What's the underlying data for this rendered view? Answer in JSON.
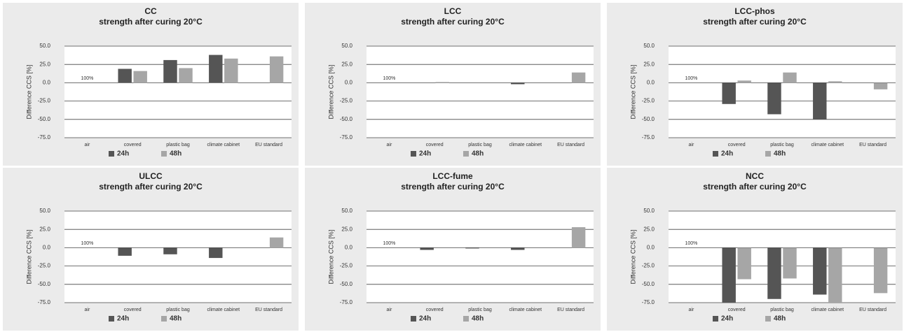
{
  "chart_data": [
    {
      "type": "bar",
      "title": "CC",
      "subtitle": "strength after curing 20°C",
      "y_label": "Difference CCS [%]",
      "annotation": "100%",
      "categories": [
        "air",
        "covered",
        "plastic bag",
        "climate cabinet",
        "EU standard"
      ],
      "series": [
        {
          "name": "24h",
          "color": "#555555",
          "values": [
            null,
            19,
            31,
            38,
            null
          ]
        },
        {
          "name": "48h",
          "color": "#a6a6a6",
          "values": [
            null,
            16,
            20,
            33,
            36
          ]
        }
      ],
      "ylim": [
        -75,
        50
      ],
      "yticks": [
        {
          "value": -75,
          "label": "-75.0"
        },
        {
          "value": -50,
          "label": "-50.0"
        },
        {
          "value": -25,
          "label": "-25.0"
        },
        {
          "value": 0,
          "label": "0.0"
        },
        {
          "value": 25,
          "label": "25.0"
        },
        {
          "value": 50,
          "label": "50.0"
        }
      ],
      "grid": true,
      "legend": "bottom"
    },
    {
      "type": "bar",
      "title": "LCC",
      "subtitle": "strength after curing 20°C",
      "y_label": "Difference CCS [%]",
      "annotation": "100%",
      "categories": [
        "air",
        "covered",
        "plastic bag",
        "climate cabinet",
        "EU standard"
      ],
      "series": [
        {
          "name": "24h",
          "color": "#555555",
          "values": [
            null,
            0,
            0,
            -2,
            null
          ]
        },
        {
          "name": "48h",
          "color": "#a6a6a6",
          "values": [
            null,
            1,
            0,
            0,
            14
          ]
        }
      ],
      "ylim": [
        -75,
        50
      ],
      "yticks": [
        {
          "value": -75,
          "label": "-75.0"
        },
        {
          "value": -50,
          "label": "-50.0"
        },
        {
          "value": -25,
          "label": "-25.0"
        },
        {
          "value": 0,
          "label": "0.0"
        },
        {
          "value": 25,
          "label": "25.0"
        },
        {
          "value": 50,
          "label": "50.0"
        }
      ],
      "grid": true,
      "legend": "bottom"
    },
    {
      "type": "bar",
      "title": "LCC-phos",
      "subtitle": "strength after curing 20°C",
      "y_label": "Difference CCS [%]",
      "annotation": "100%",
      "categories": [
        "air",
        "covered",
        "plastic bag",
        "climate cabinet",
        "EU standard"
      ],
      "series": [
        {
          "name": "24h",
          "color": "#555555",
          "values": [
            null,
            -29,
            -43,
            -50,
            null
          ]
        },
        {
          "name": "48h",
          "color": "#a6a6a6",
          "values": [
            null,
            3,
            14,
            2,
            -9
          ]
        }
      ],
      "ylim": [
        -75,
        50
      ],
      "yticks": [
        {
          "value": -75,
          "label": "-75.0"
        },
        {
          "value": -50,
          "label": "-50.0"
        },
        {
          "value": -25,
          "label": "-25.0"
        },
        {
          "value": 0,
          "label": "0.0"
        },
        {
          "value": 25,
          "label": "25.0"
        },
        {
          "value": 50,
          "label": "50.0"
        }
      ],
      "grid": true,
      "legend": "bottom"
    },
    {
      "type": "bar",
      "title": "ULCC",
      "subtitle": "strength after curing 20°C",
      "y_label": "Difference CCS [%]",
      "annotation": "100%",
      "categories": [
        "air",
        "covered",
        "plastic bag",
        "climate cabinet",
        "EU standard"
      ],
      "series": [
        {
          "name": "24h",
          "color": "#555555",
          "values": [
            null,
            -11,
            -9,
            -14,
            null
          ]
        },
        {
          "name": "48h",
          "color": "#a6a6a6",
          "values": [
            null,
            0,
            0,
            0,
            14
          ]
        }
      ],
      "ylim": [
        -75,
        50
      ],
      "yticks": [
        {
          "value": -75,
          "label": "-75.0"
        },
        {
          "value": -50,
          "label": "-50.0"
        },
        {
          "value": -25,
          "label": "-25.0"
        },
        {
          "value": 0,
          "label": "0.0"
        },
        {
          "value": 25,
          "label": "25.0"
        },
        {
          "value": 50,
          "label": "50.0"
        }
      ],
      "grid": true,
      "legend": "bottom"
    },
    {
      "type": "bar",
      "title": "LCC-fume",
      "subtitle": "strength after curing 20°C",
      "y_label": "Difference CCS [%]",
      "annotation": "100%",
      "categories": [
        "air",
        "covered",
        "plastic bag",
        "climate cabinet",
        "EU standard"
      ],
      "series": [
        {
          "name": "24h",
          "color": "#555555",
          "values": [
            null,
            -3,
            -1,
            -3,
            null
          ]
        },
        {
          "name": "48h",
          "color": "#a6a6a6",
          "values": [
            null,
            0,
            0,
            0,
            28
          ]
        }
      ],
      "ylim": [
        -75,
        50
      ],
      "yticks": [
        {
          "value": -75,
          "label": "-75.0"
        },
        {
          "value": -50,
          "label": "-50.0"
        },
        {
          "value": -25,
          "label": "-25.0"
        },
        {
          "value": 0,
          "label": "0.0"
        },
        {
          "value": 25,
          "label": "25.0"
        },
        {
          "value": 50,
          "label": "50.0"
        }
      ],
      "grid": true,
      "legend": "bottom"
    },
    {
      "type": "bar",
      "title": "NCC",
      "subtitle": "strength after curing 20°C",
      "y_label": "Difference CCS [%]",
      "annotation": "100%",
      "categories": [
        "air",
        "covered",
        "plastic bag",
        "climate cabinet",
        "EU standard"
      ],
      "series": [
        {
          "name": "24h",
          "color": "#555555",
          "values": [
            null,
            -75,
            -70,
            -64,
            null
          ]
        },
        {
          "name": "48h",
          "color": "#a6a6a6",
          "values": [
            null,
            -43,
            -42,
            -75,
            -62
          ]
        }
      ],
      "ylim": [
        -75,
        50
      ],
      "yticks": [
        {
          "value": -75,
          "label": "-75.0"
        },
        {
          "value": -50,
          "label": "-50.0"
        },
        {
          "value": -25,
          "label": "-25.0"
        },
        {
          "value": 0,
          "label": "0.0"
        },
        {
          "value": 25,
          "label": "25.0"
        },
        {
          "value": 50,
          "label": "50.0"
        }
      ],
      "grid": true,
      "legend": "bottom"
    }
  ]
}
